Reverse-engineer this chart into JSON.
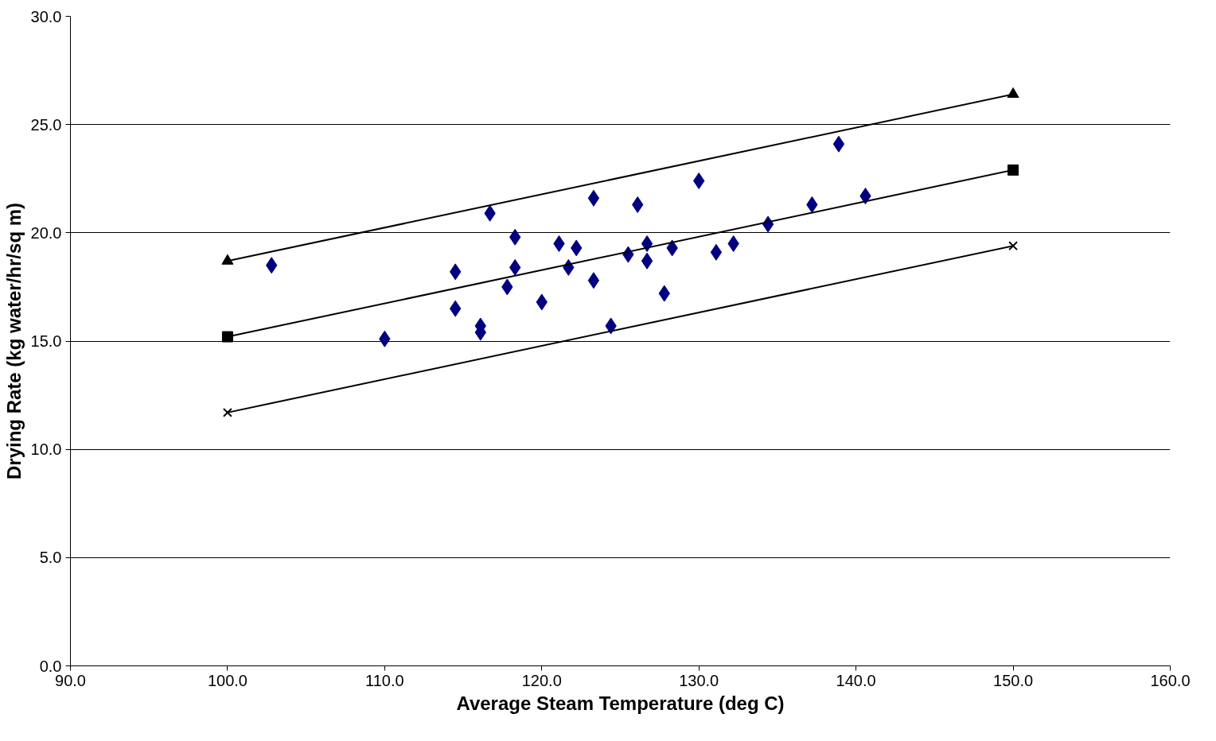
{
  "chart_data": {
    "type": "scatter",
    "xlabel": "Average Steam Temperature (deg C)",
    "ylabel": "Drying Rate (kg water/hr/sq m)",
    "xlim": [
      90,
      160
    ],
    "xticks": [
      {
        "value": 90,
        "label": "90.0"
      },
      {
        "value": 100,
        "label": "100.0"
      },
      {
        "value": 110,
        "label": "110.0"
      },
      {
        "value": 120,
        "label": "120.0"
      },
      {
        "value": 130,
        "label": "130.0"
      },
      {
        "value": 140,
        "label": "140.0"
      },
      {
        "value": 150,
        "label": "150.0"
      },
      {
        "value": 160,
        "label": "160.0"
      }
    ],
    "ylim": [
      0,
      30
    ],
    "yticks": [
      {
        "value": 0,
        "label": "0.0"
      },
      {
        "value": 5,
        "label": "5.0"
      },
      {
        "value": 10,
        "label": "10.0"
      },
      {
        "value": 15,
        "label": "15.0"
      },
      {
        "value": 20,
        "label": "20.0"
      },
      {
        "value": 25,
        "label": "25.0"
      },
      {
        "value": 30,
        "label": "30.0"
      }
    ],
    "grid": "y",
    "series": [
      {
        "marker": "diamond",
        "color": "#000080",
        "x": [
          102.8,
          110.0,
          114.5,
          114.5,
          116.1,
          116.1,
          116.7,
          117.8,
          118.3,
          118.3,
          120.0,
          121.1,
          121.7,
          122.2,
          123.3,
          123.3,
          124.4,
          125.5,
          126.1,
          126.7,
          126.7,
          127.8,
          128.3,
          130.0,
          131.1,
          132.2,
          134.4,
          137.2,
          138.9,
          140.6
        ],
        "values": [
          18.5,
          15.1,
          18.2,
          16.5,
          15.7,
          15.4,
          20.9,
          17.5,
          19.8,
          18.4,
          16.8,
          19.5,
          18.4,
          19.3,
          21.6,
          17.8,
          15.7,
          19.0,
          21.3,
          19.5,
          18.7,
          17.2,
          19.3,
          22.4,
          19.1,
          19.5,
          20.4,
          21.3,
          24.1,
          21.7
        ]
      },
      {
        "type": "line",
        "marker": "triangle",
        "color": "#000000",
        "x": [
          100,
          150
        ],
        "values": [
          18.7,
          26.4
        ]
      },
      {
        "type": "line",
        "marker": "square",
        "color": "#000000",
        "x": [
          100,
          150
        ],
        "values": [
          15.2,
          22.9
        ]
      },
      {
        "type": "line",
        "marker": "cross",
        "color": "#000000",
        "x": [
          100,
          150
        ],
        "values": [
          11.7,
          19.4
        ]
      }
    ]
  }
}
